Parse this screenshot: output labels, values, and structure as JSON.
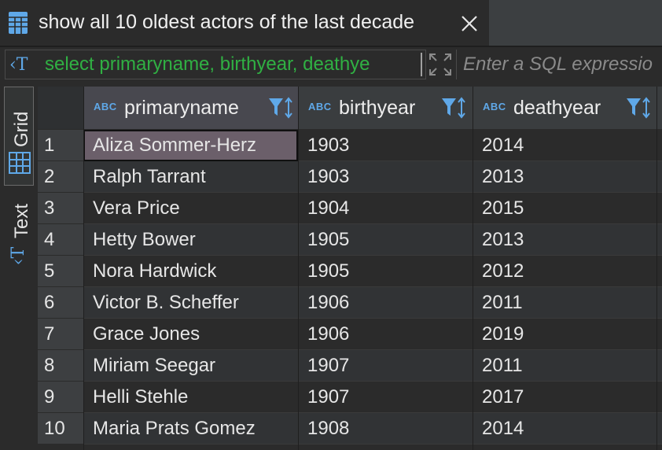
{
  "tab": {
    "title": "show all 10 oldest actors of the last decade",
    "icon": "table-icon",
    "close_icon": "close-icon"
  },
  "filter": {
    "sql_text": "select primaryname, birthyear, deathye",
    "placeholder": "Enter a SQL expressio",
    "sql_icon": "sql-text-icon",
    "expand_icon": "expand-icon"
  },
  "sidebar": {
    "grid_label": "Grid",
    "text_label": "Text"
  },
  "columns": [
    {
      "type": "ABC",
      "label": "primaryname"
    },
    {
      "type": "ABC",
      "label": "birthyear"
    },
    {
      "type": "ABC",
      "label": "deathyear"
    }
  ],
  "rows": [
    {
      "n": "1",
      "primaryname": "Aliza Sommer-Herz",
      "birthyear": "1903",
      "deathyear": "2014"
    },
    {
      "n": "2",
      "primaryname": "Ralph Tarrant",
      "birthyear": "1903",
      "deathyear": "2013"
    },
    {
      "n": "3",
      "primaryname": "Vera Price",
      "birthyear": "1904",
      "deathyear": "2015"
    },
    {
      "n": "4",
      "primaryname": "Hetty Bower",
      "birthyear": "1905",
      "deathyear": "2013"
    },
    {
      "n": "5",
      "primaryname": "Nora Hardwick",
      "birthyear": "1905",
      "deathyear": "2012"
    },
    {
      "n": "6",
      "primaryname": "Victor B. Scheffer",
      "birthyear": "1906",
      "deathyear": "2011"
    },
    {
      "n": "7",
      "primaryname": "Grace Jones",
      "birthyear": "1906",
      "deathyear": "2019"
    },
    {
      "n": "8",
      "primaryname": "Miriam Seegar",
      "birthyear": "1907",
      "deathyear": "2011"
    },
    {
      "n": "9",
      "primaryname": "Helli Stehle",
      "birthyear": "1907",
      "deathyear": "2017"
    },
    {
      "n": "10",
      "primaryname": "Maria Prats Gomez",
      "birthyear": "1908",
      "deathyear": "2014"
    }
  ],
  "colors": {
    "accent": "#5fa8e8",
    "sql_green": "#30b043",
    "selected_cell": "#6b5f6a"
  }
}
